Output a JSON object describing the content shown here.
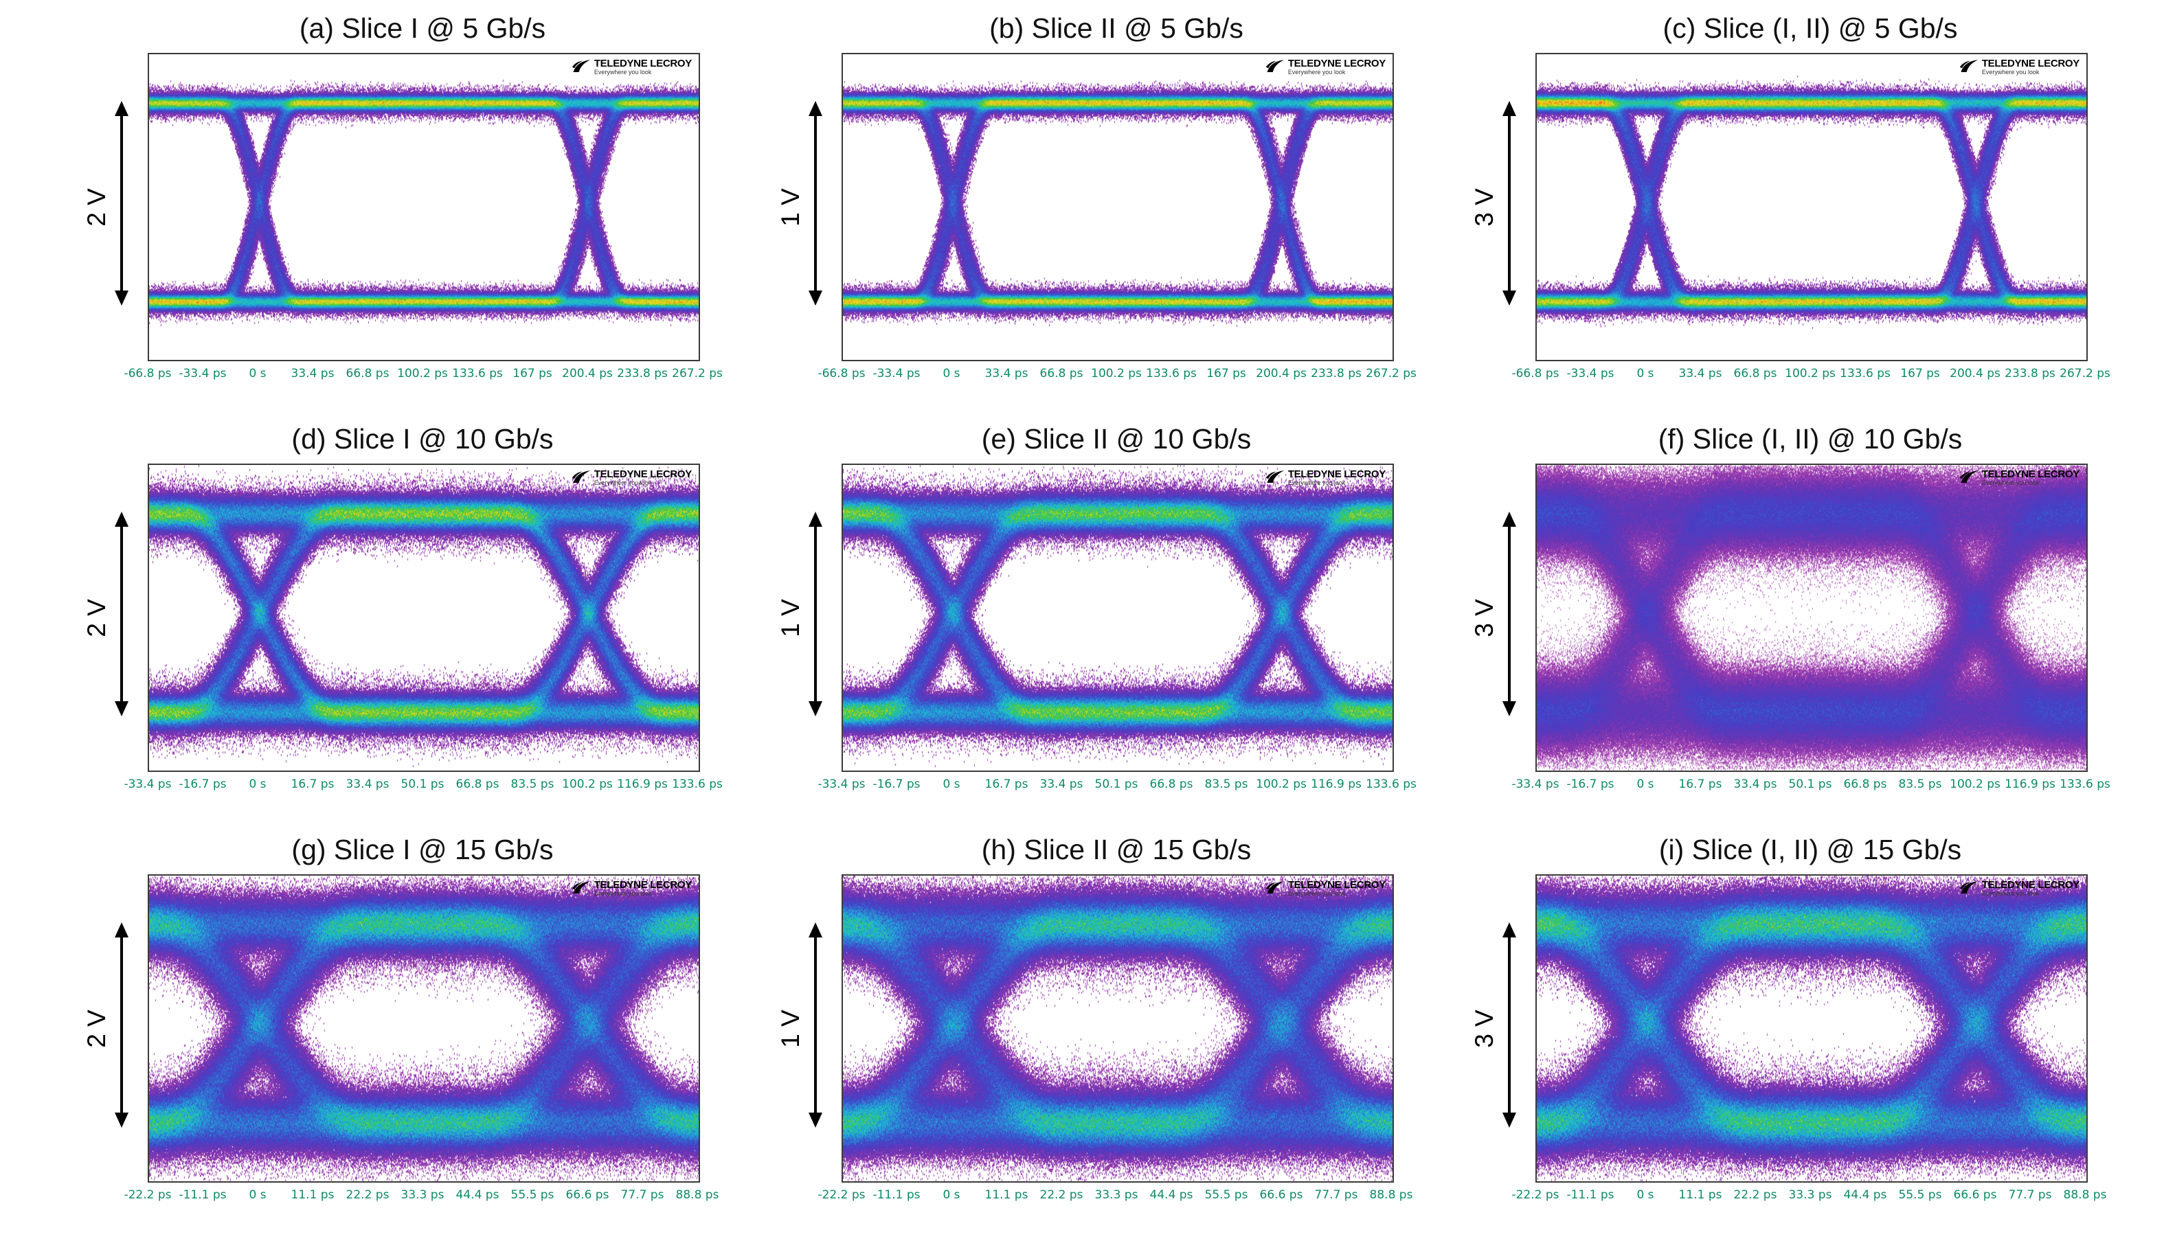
{
  "figure": {
    "type": "eye-diagram-grid",
    "rows": 3,
    "cols": 3,
    "logo": {
      "brand": "TELEDYNE LECROY",
      "tagline": "Everywhere you look"
    },
    "panels": [
      {
        "id": "a",
        "title": "(a) Slice I @ 5 Gb/s",
        "voltage_label": "2 V",
        "bit_rate": "5 Gb/s",
        "time_ticks": [
          "-66.8 ps",
          "-33.4 ps",
          "0 s",
          "33.4 ps",
          "66.8 ps",
          "100.2 ps",
          "133.6 ps",
          "167 ps",
          "200.4 ps",
          "233.8 ps",
          "267.2 ps"
        ],
        "eye_model": {
          "rise": 0.22,
          "noise": 0.014,
          "jitter": 0.012,
          "wiggle": 0.013,
          "isi": 0.006,
          "traces": 1200,
          "gamma": 0.4,
          "heat": 1.0,
          "seed": 1
        }
      },
      {
        "id": "b",
        "title": "(b) Slice II @ 5 Gb/s",
        "voltage_label": "1 V",
        "bit_rate": "5 Gb/s",
        "time_ticks": [
          "-66.8 ps",
          "-33.4 ps",
          "0 s",
          "33.4 ps",
          "66.8 ps",
          "100.2 ps",
          "133.6 ps",
          "167 ps",
          "200.4 ps",
          "233.8 ps",
          "267.2 ps"
        ],
        "eye_model": {
          "rise": 0.22,
          "noise": 0.014,
          "jitter": 0.012,
          "wiggle": 0.014,
          "isi": 0.007,
          "traces": 1200,
          "gamma": 0.4,
          "heat": 1.0,
          "seed": 2
        }
      },
      {
        "id": "c",
        "title": "(c) Slice (I, II) @ 5 Gb/s",
        "voltage_label": "3 V",
        "bit_rate": "5 Gb/s",
        "time_ticks": [
          "-66.8 ps",
          "-33.4 ps",
          "0 s",
          "33.4 ps",
          "66.8 ps",
          "100.2 ps",
          "133.6 ps",
          "167 ps",
          "200.4 ps",
          "233.8 ps",
          "267.2 ps"
        ],
        "eye_model": {
          "rise": 0.24,
          "noise": 0.015,
          "jitter": 0.013,
          "wiggle": 0.015,
          "isi": 0.008,
          "traces": 1250,
          "gamma": 0.4,
          "heat": 1.0,
          "seed": 3
        }
      },
      {
        "id": "d",
        "title": "(d) Slice I @ 10 Gb/s",
        "voltage_label": "2 V",
        "bit_rate": "10 Gb/s",
        "time_ticks": [
          "-33.4 ps",
          "-16.7 ps",
          "0 s",
          "16.7 ps",
          "33.4 ps",
          "50.1 ps",
          "66.8 ps",
          "83.5 ps",
          "100.2 ps",
          "116.9 ps",
          "133.6 ps"
        ],
        "eye_model": {
          "rise": 0.46,
          "noise": 0.032,
          "jitter": 0.016,
          "wiggle": 0.02,
          "isi": 0.022,
          "traces": 1400,
          "gamma": 0.46,
          "heat": 1.0,
          "seed": 4
        }
      },
      {
        "id": "e",
        "title": "(e) Slice II @ 10 Gb/s",
        "voltage_label": "1 V",
        "bit_rate": "10 Gb/s",
        "time_ticks": [
          "-33.4 ps",
          "-16.7 ps",
          "0 s",
          "16.7 ps",
          "33.4 ps",
          "50.1 ps",
          "66.8 ps",
          "83.5 ps",
          "100.2 ps",
          "116.9 ps",
          "133.6 ps"
        ],
        "eye_model": {
          "rise": 0.48,
          "noise": 0.034,
          "jitter": 0.017,
          "wiggle": 0.02,
          "isi": 0.024,
          "traces": 1400,
          "gamma": 0.46,
          "heat": 0.97,
          "seed": 5
        }
      },
      {
        "id": "f",
        "title": "(f) Slice (I, II) @ 10 Gb/s",
        "voltage_label": "3 V",
        "bit_rate": "10 Gb/s",
        "time_ticks": [
          "-33.4 ps",
          "-16.7 ps",
          "0 s",
          "16.7 ps",
          "33.4 ps",
          "50.1 ps",
          "66.8 ps",
          "83.5 ps",
          "100.2 ps",
          "116.9 ps",
          "133.6 ps"
        ],
        "eye_model": {
          "rise": 0.48,
          "noise": 0.065,
          "jitter": 0.02,
          "wiggle": 0.02,
          "isi": 0.06,
          "traces": 1500,
          "gamma": 0.55,
          "heat": 0.55,
          "seed": 6
        }
      },
      {
        "id": "g",
        "title": "(g) Slice I @ 15 Gb/s",
        "voltage_label": "2 V",
        "bit_rate": "15 Gb/s",
        "time_ticks": [
          "-22.2 ps",
          "-11.1 ps",
          "0 s",
          "11.1 ps",
          "22.2 ps",
          "33.3 ps",
          "44.4 ps",
          "55.5 ps",
          "66.6 ps",
          "77.7 ps",
          "88.8 ps"
        ],
        "eye_model": {
          "rise": 0.62,
          "noise": 0.048,
          "jitter": 0.03,
          "wiggle": 0.022,
          "isi": 0.045,
          "traces": 1600,
          "gamma": 0.5,
          "heat": 0.92,
          "seed": 7
        }
      },
      {
        "id": "h",
        "title": "(h) Slice II @ 15 Gb/s",
        "voltage_label": "1 V",
        "bit_rate": "15 Gb/s",
        "time_ticks": [
          "-22.2 ps",
          "-11.1 ps",
          "0 s",
          "11.1 ps",
          "22.2 ps",
          "33.3 ps",
          "44.4 ps",
          "55.5 ps",
          "66.6 ps",
          "77.7 ps",
          "88.8 ps"
        ],
        "eye_model": {
          "rise": 0.64,
          "noise": 0.05,
          "jitter": 0.03,
          "wiggle": 0.022,
          "isi": 0.048,
          "traces": 1600,
          "gamma": 0.5,
          "heat": 0.92,
          "seed": 8
        }
      },
      {
        "id": "i",
        "title": "(i) Slice (I, II) @ 15 Gb/s",
        "voltage_label": "3 V",
        "bit_rate": "15 Gb/s",
        "time_ticks": [
          "-22.2 ps",
          "-11.1 ps",
          "0 s",
          "11.1 ps",
          "22.2 ps",
          "33.3 ps",
          "44.4 ps",
          "55.5 ps",
          "66.6 ps",
          "77.7 ps",
          "88.8 ps"
        ],
        "eye_model": {
          "rise": 0.62,
          "noise": 0.05,
          "jitter": 0.032,
          "wiggle": 0.024,
          "isi": 0.05,
          "traces": 1650,
          "gamma": 0.5,
          "heat": 0.96,
          "seed": 9
        }
      }
    ]
  },
  "colors": {
    "heatmap_stops": [
      [
        0.0,
        "#ffffff"
      ],
      [
        0.09,
        "#a23bae"
      ],
      [
        0.22,
        "#6a35b5"
      ],
      [
        0.38,
        "#4440c8"
      ],
      [
        0.55,
        "#2e7fd6"
      ],
      [
        0.66,
        "#19c0d8"
      ],
      [
        0.78,
        "#44c83c"
      ],
      [
        0.88,
        "#e8e020"
      ],
      [
        0.94,
        "#f59a1a"
      ],
      [
        1.0,
        "#e82010"
      ]
    ],
    "tick_label": "#0d8a66",
    "title_text": "#111111",
    "plot_border": "#3a3a3a",
    "arrow": "#000000"
  }
}
